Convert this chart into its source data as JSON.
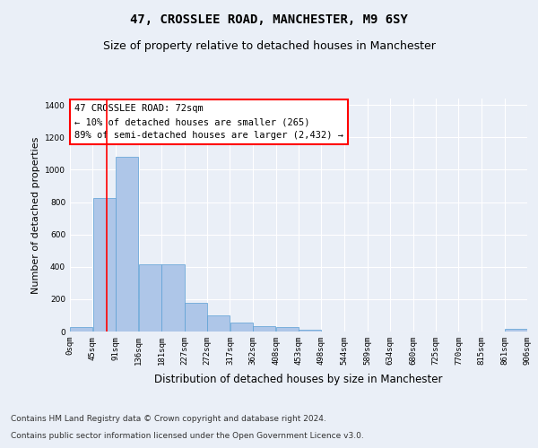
{
  "title_line1": "47, CROSSLEE ROAD, MANCHESTER, M9 6SY",
  "title_line2": "Size of property relative to detached houses in Manchester",
  "xlabel": "Distribution of detached houses by size in Manchester",
  "ylabel": "Number of detached properties",
  "footer_line1": "Contains HM Land Registry data © Crown copyright and database right 2024.",
  "footer_line2": "Contains public sector information licensed under the Open Government Licence v3.0.",
  "annotation_line1": "47 CROSSLEE ROAD: 72sqm",
  "annotation_line2": "← 10% of detached houses are smaller (265)",
  "annotation_line3": "89% of semi-detached houses are larger (2,432) →",
  "bar_edges": [
    0,
    45,
    91,
    136,
    181,
    227,
    272,
    317,
    362,
    408,
    453,
    498,
    544,
    589,
    634,
    680,
    725,
    770,
    815,
    861,
    906
  ],
  "bar_heights": [
    25,
    825,
    1080,
    415,
    415,
    180,
    100,
    55,
    32,
    25,
    10,
    0,
    0,
    0,
    0,
    0,
    0,
    0,
    0,
    15,
    0
  ],
  "bar_color": "#aec6e8",
  "bar_edge_color": "#5a9fd4",
  "red_line_x": 72,
  "ylim": [
    0,
    1440
  ],
  "yticks": [
    0,
    200,
    400,
    600,
    800,
    1000,
    1200,
    1400
  ],
  "xtick_labels": [
    "0sqm",
    "45sqm",
    "91sqm",
    "136sqm",
    "181sqm",
    "227sqm",
    "272sqm",
    "317sqm",
    "362sqm",
    "408sqm",
    "453sqm",
    "498sqm",
    "544sqm",
    "589sqm",
    "634sqm",
    "680sqm",
    "725sqm",
    "770sqm",
    "815sqm",
    "861sqm",
    "906sqm"
  ],
  "background_color": "#eaeff7",
  "axes_background_color": "#eaeff7",
  "grid_color": "#ffffff",
  "title_fontsize": 10,
  "subtitle_fontsize": 9,
  "ylabel_fontsize": 8,
  "xlabel_fontsize": 8.5,
  "annotation_fontsize": 7.5,
  "tick_fontsize": 6.5,
  "footer_fontsize": 6.5
}
